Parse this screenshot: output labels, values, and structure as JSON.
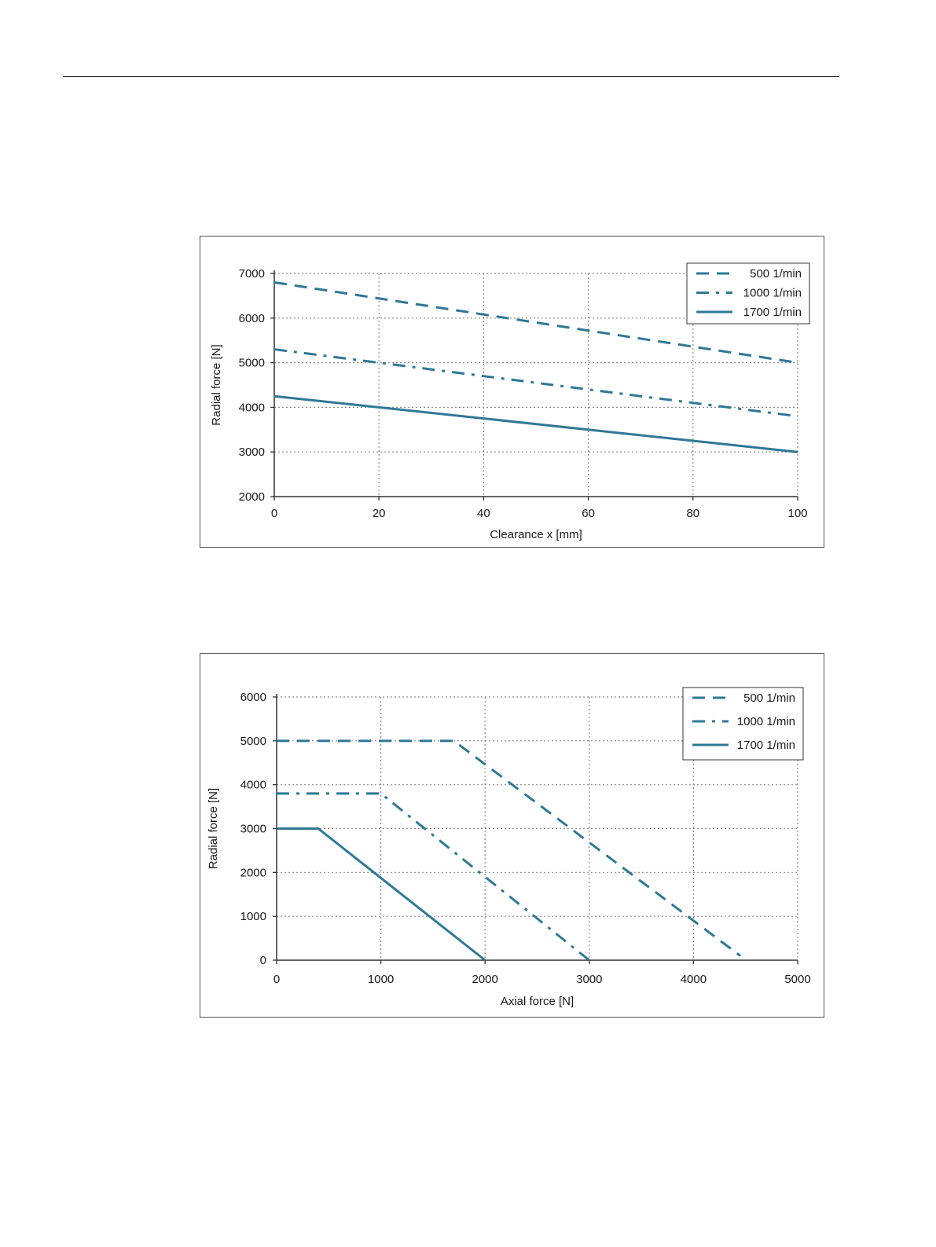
{
  "colors": {
    "series": "#2e7896",
    "grid": "#8a8a8a",
    "axis": "#333333",
    "frame": "#555555"
  },
  "chart_data": [
    {
      "type": "line",
      "title": "",
      "xlabel": "Clearance x [mm]",
      "ylabel": "Radial force [N]",
      "xlim": [
        0,
        100
      ],
      "ylim": [
        2000,
        7000
      ],
      "xticks": [
        0,
        20,
        40,
        60,
        80,
        100
      ],
      "yticks": [
        2000,
        3000,
        4000,
        5000,
        6000,
        7000
      ],
      "grid": true,
      "legend_position": "top-right",
      "series": [
        {
          "name": "500  1/min",
          "style": "dashed",
          "x": [
            0,
            100
          ],
          "y": [
            6800,
            5000
          ]
        },
        {
          "name": "1000  1/min",
          "style": "dash-dot",
          "x": [
            0,
            100
          ],
          "y": [
            5300,
            3800
          ]
        },
        {
          "name": "1700  1/min",
          "style": "solid",
          "x": [
            0,
            100
          ],
          "y": [
            4250,
            3000
          ]
        }
      ]
    },
    {
      "type": "line",
      "title": "",
      "xlabel": "Axial force [N]",
      "ylabel": "Radial force [N]",
      "xlim": [
        0,
        5000
      ],
      "ylim": [
        0,
        6000
      ],
      "xticks": [
        0,
        1000,
        2000,
        3000,
        4000,
        5000
      ],
      "yticks": [
        0,
        1000,
        2000,
        3000,
        4000,
        5000,
        6000
      ],
      "grid": true,
      "legend_position": "top-right",
      "series": [
        {
          "name": "500 1/min",
          "style": "dashed",
          "x": [
            0,
            1700,
            4450
          ],
          "y": [
            5000,
            5000,
            100
          ]
        },
        {
          "name": "1000 1/min",
          "style": "dash-dot",
          "x": [
            0,
            1000,
            3000
          ],
          "y": [
            3800,
            3800,
            0
          ]
        },
        {
          "name": "1700 1/min",
          "style": "solid",
          "x": [
            0,
            400,
            2000
          ],
          "y": [
            3000,
            3000,
            0
          ]
        }
      ]
    }
  ]
}
